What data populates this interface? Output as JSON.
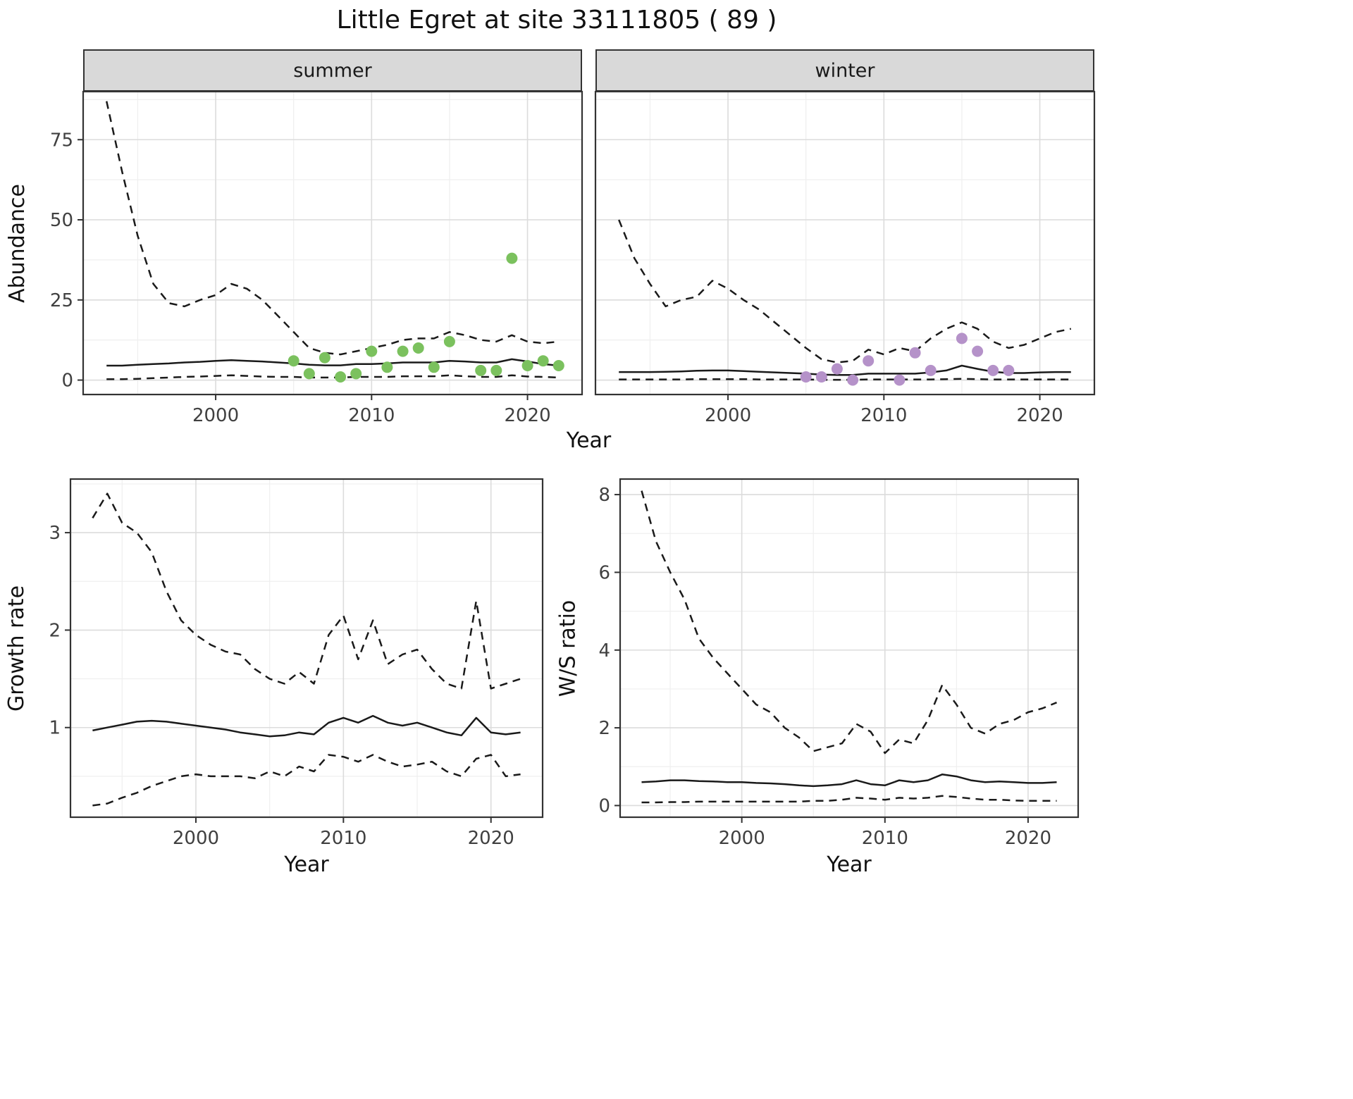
{
  "title": "Little Egret at site 33111805 ( 89 )",
  "colors": {
    "summer_points": "#7bc15e",
    "winter_points": "#b592c9",
    "line": "#1a1a1a",
    "strip_bg": "#d9d9d9",
    "grid_major": "#dcdcdc",
    "grid_minor": "#efefef",
    "panel_border": "#333333"
  },
  "chart_data": [
    {
      "id": "abundance-summer",
      "type": "line",
      "facet_label": "summer",
      "xlabel": "Year",
      "ylabel": "Abundance",
      "x": [
        1993,
        1994,
        1995,
        1996,
        1997,
        1998,
        1999,
        2000,
        2001,
        2002,
        2003,
        2004,
        2005,
        2006,
        2007,
        2008,
        2009,
        2010,
        2011,
        2012,
        2013,
        2014,
        2015,
        2016,
        2017,
        2018,
        2019,
        2020,
        2021,
        2022
      ],
      "series": [
        {
          "name": "upper-ci",
          "style": "dashed",
          "values": [
            87,
            65,
            45,
            30,
            24,
            23,
            25,
            26.5,
            30,
            28.5,
            25,
            20,
            15,
            10,
            8.5,
            8,
            9,
            10,
            11,
            12.5,
            13,
            13,
            15,
            14,
            12.5,
            12,
            14,
            12,
            11.5,
            12
          ]
        },
        {
          "name": "median",
          "style": "solid",
          "values": [
            4.5,
            4.5,
            4.8,
            5,
            5.2,
            5.5,
            5.7,
            6,
            6.2,
            6,
            5.8,
            5.5,
            5.2,
            4.8,
            4.6,
            4.6,
            5,
            5,
            5.2,
            5.5,
            5.5,
            5.5,
            6,
            5.8,
            5.5,
            5.5,
            6.5,
            5.8,
            5,
            4.5
          ]
        },
        {
          "name": "lower-ci",
          "style": "dashed",
          "values": [
            0.3,
            0.3,
            0.4,
            0.6,
            0.8,
            1,
            1.1,
            1.3,
            1.5,
            1.3,
            1.1,
            1,
            1,
            0.8,
            0.8,
            0.8,
            1,
            1,
            1,
            1.2,
            1.2,
            1.2,
            1.5,
            1.2,
            1,
            1,
            1.5,
            1.1,
            1,
            0.8
          ]
        }
      ],
      "points": {
        "name": "observed-counts",
        "color": "#7bc15e",
        "x": [
          2005,
          2006,
          2007,
          2008,
          2009,
          2010,
          2011,
          2012,
          2013,
          2014,
          2015,
          2017,
          2018,
          2019,
          2020,
          2021,
          2022
        ],
        "y": [
          6,
          2,
          7,
          1,
          2,
          9,
          4,
          9,
          10,
          4,
          12,
          3,
          3,
          38,
          4.5,
          6,
          4.5
        ]
      },
      "xlim": [
        1991.5,
        2023.5
      ],
      "ylim": [
        -4.5,
        90
      ],
      "xticks": [
        2000,
        2010,
        2020
      ],
      "yticks": [
        0,
        25,
        50,
        75
      ],
      "xminor": [
        1995,
        2005,
        2015
      ],
      "yminor": [
        12.5,
        37.5,
        62.5,
        87.5
      ]
    },
    {
      "id": "abundance-winter",
      "type": "line",
      "facet_label": "winter",
      "xlabel": "Year",
      "ylabel": "Abundance",
      "x": [
        1993,
        1994,
        1995,
        1996,
        1997,
        1998,
        1999,
        2000,
        2001,
        2002,
        2003,
        2004,
        2005,
        2006,
        2007,
        2008,
        2009,
        2010,
        2011,
        2012,
        2013,
        2014,
        2015,
        2016,
        2017,
        2018,
        2019,
        2020,
        2021,
        2022
      ],
      "series": [
        {
          "name": "upper-ci",
          "style": "dashed",
          "values": [
            50,
            38,
            30,
            23,
            25,
            26,
            31,
            28.5,
            25,
            22,
            18,
            14,
            10,
            6.5,
            5.5,
            6,
            9.5,
            8,
            10,
            9,
            13,
            16,
            18,
            16,
            12,
            10,
            11,
            13,
            15,
            16
          ]
        },
        {
          "name": "median",
          "style": "solid",
          "values": [
            2.5,
            2.5,
            2.5,
            2.6,
            2.7,
            2.9,
            3,
            3,
            2.8,
            2.6,
            2.4,
            2.2,
            2,
            1.7,
            1.6,
            1.6,
            2,
            2,
            2,
            2,
            2.4,
            3,
            4.5,
            3.5,
            2.6,
            2.2,
            2.2,
            2.4,
            2.5,
            2.5
          ]
        },
        {
          "name": "lower-ci",
          "style": "dashed",
          "values": [
            0.2,
            0.2,
            0.2,
            0.2,
            0.2,
            0.3,
            0.3,
            0.3,
            0.3,
            0.2,
            0.2,
            0.2,
            0.2,
            0.1,
            0.1,
            0.1,
            0.2,
            0.2,
            0.2,
            0.2,
            0.2,
            0.3,
            0.4,
            0.3,
            0.2,
            0.2,
            0.2,
            0.2,
            0.2,
            0.2
          ]
        }
      ],
      "points": {
        "name": "observed-counts",
        "color": "#b592c9",
        "x": [
          2005,
          2006,
          2007,
          2008,
          2009,
          2011,
          2012,
          2013,
          2015,
          2016,
          2017,
          2018
        ],
        "y": [
          1,
          1,
          3.5,
          0,
          6,
          0,
          8.5,
          3,
          13,
          9,
          3,
          3
        ]
      },
      "xlim": [
        1991.5,
        2023.5
      ],
      "ylim": [
        -4.5,
        90
      ],
      "xticks": [
        2000,
        2010,
        2020
      ],
      "yticks": [
        0,
        25,
        50,
        75
      ],
      "xminor": [
        1995,
        2005,
        2015
      ],
      "yminor": [
        12.5,
        37.5,
        62.5,
        87.5
      ]
    },
    {
      "id": "growth-rate",
      "type": "line",
      "facet_label": "",
      "xlabel": "Year",
      "ylabel": "Growth rate",
      "x": [
        1993,
        1994,
        1995,
        1996,
        1997,
        1998,
        1999,
        2000,
        2001,
        2002,
        2003,
        2004,
        2005,
        2006,
        2007,
        2008,
        2009,
        2010,
        2011,
        2012,
        2013,
        2014,
        2015,
        2016,
        2017,
        2018,
        2019,
        2020,
        2021,
        2022
      ],
      "series": [
        {
          "name": "upper-ci",
          "style": "dashed",
          "values": [
            3.15,
            3.4,
            3.1,
            3.0,
            2.8,
            2.4,
            2.1,
            1.95,
            1.85,
            1.78,
            1.75,
            1.6,
            1.5,
            1.45,
            1.57,
            1.45,
            1.95,
            2.15,
            1.7,
            2.1,
            1.65,
            1.75,
            1.8,
            1.6,
            1.45,
            1.4,
            2.3,
            1.4,
            1.45,
            1.5
          ]
        },
        {
          "name": "median",
          "style": "solid",
          "values": [
            0.97,
            1.0,
            1.03,
            1.06,
            1.07,
            1.06,
            1.04,
            1.02,
            1.0,
            0.98,
            0.95,
            0.93,
            0.91,
            0.92,
            0.95,
            0.93,
            1.05,
            1.1,
            1.05,
            1.12,
            1.05,
            1.02,
            1.05,
            1.0,
            0.95,
            0.92,
            1.1,
            0.95,
            0.93,
            0.95
          ]
        },
        {
          "name": "lower-ci",
          "style": "dashed",
          "values": [
            0.2,
            0.22,
            0.28,
            0.33,
            0.4,
            0.45,
            0.5,
            0.52,
            0.5,
            0.5,
            0.5,
            0.48,
            0.55,
            0.5,
            0.6,
            0.55,
            0.72,
            0.7,
            0.65,
            0.72,
            0.65,
            0.6,
            0.62,
            0.65,
            0.55,
            0.5,
            0.68,
            0.72,
            0.5,
            0.52
          ]
        }
      ],
      "xlim": [
        1991.5,
        2023.5
      ],
      "ylim": [
        0.08,
        3.55
      ],
      "xticks": [
        2000,
        2010,
        2020
      ],
      "yticks": [
        1,
        2,
        3
      ],
      "xminor": [
        1995,
        2005,
        2015
      ],
      "yminor": [
        0.5,
        1.5,
        2.5,
        3.5
      ]
    },
    {
      "id": "ws-ratio",
      "type": "line",
      "facet_label": "",
      "xlabel": "Year",
      "ylabel": "W/S ratio",
      "x": [
        1993,
        1994,
        1995,
        1996,
        1997,
        1998,
        1999,
        2000,
        2001,
        2002,
        2003,
        2004,
        2005,
        2006,
        2007,
        2008,
        2009,
        2010,
        2011,
        2012,
        2013,
        2014,
        2015,
        2016,
        2017,
        2018,
        2019,
        2020,
        2021,
        2022
      ],
      "series": [
        {
          "name": "upper-ci",
          "style": "dashed",
          "values": [
            8.1,
            6.8,
            6.0,
            5.3,
            4.3,
            3.8,
            3.4,
            3.0,
            2.6,
            2.4,
            2.0,
            1.75,
            1.4,
            1.5,
            1.6,
            2.1,
            1.9,
            1.35,
            1.7,
            1.6,
            2.2,
            3.1,
            2.6,
            2.0,
            1.85,
            2.1,
            2.2,
            2.4,
            2.5,
            2.65
          ]
        },
        {
          "name": "median",
          "style": "solid",
          "values": [
            0.6,
            0.62,
            0.65,
            0.65,
            0.63,
            0.62,
            0.6,
            0.6,
            0.58,
            0.57,
            0.55,
            0.52,
            0.5,
            0.52,
            0.55,
            0.65,
            0.55,
            0.52,
            0.65,
            0.6,
            0.65,
            0.8,
            0.75,
            0.65,
            0.6,
            0.62,
            0.6,
            0.58,
            0.58,
            0.6
          ]
        },
        {
          "name": "lower-ci",
          "style": "dashed",
          "values": [
            0.08,
            0.08,
            0.09,
            0.09,
            0.1,
            0.1,
            0.1,
            0.1,
            0.1,
            0.1,
            0.1,
            0.1,
            0.12,
            0.12,
            0.15,
            0.2,
            0.18,
            0.15,
            0.2,
            0.18,
            0.2,
            0.25,
            0.22,
            0.18,
            0.15,
            0.15,
            0.13,
            0.12,
            0.12,
            0.12
          ]
        }
      ],
      "xlim": [
        1991.5,
        2023.5
      ],
      "ylim": [
        -0.3,
        8.4
      ],
      "xticks": [
        2000,
        2010,
        2020
      ],
      "yticks": [
        0,
        2,
        4,
        6,
        8
      ],
      "xminor": [
        1995,
        2005,
        2015
      ],
      "yminor": [
        1,
        3,
        5,
        7
      ]
    }
  ]
}
